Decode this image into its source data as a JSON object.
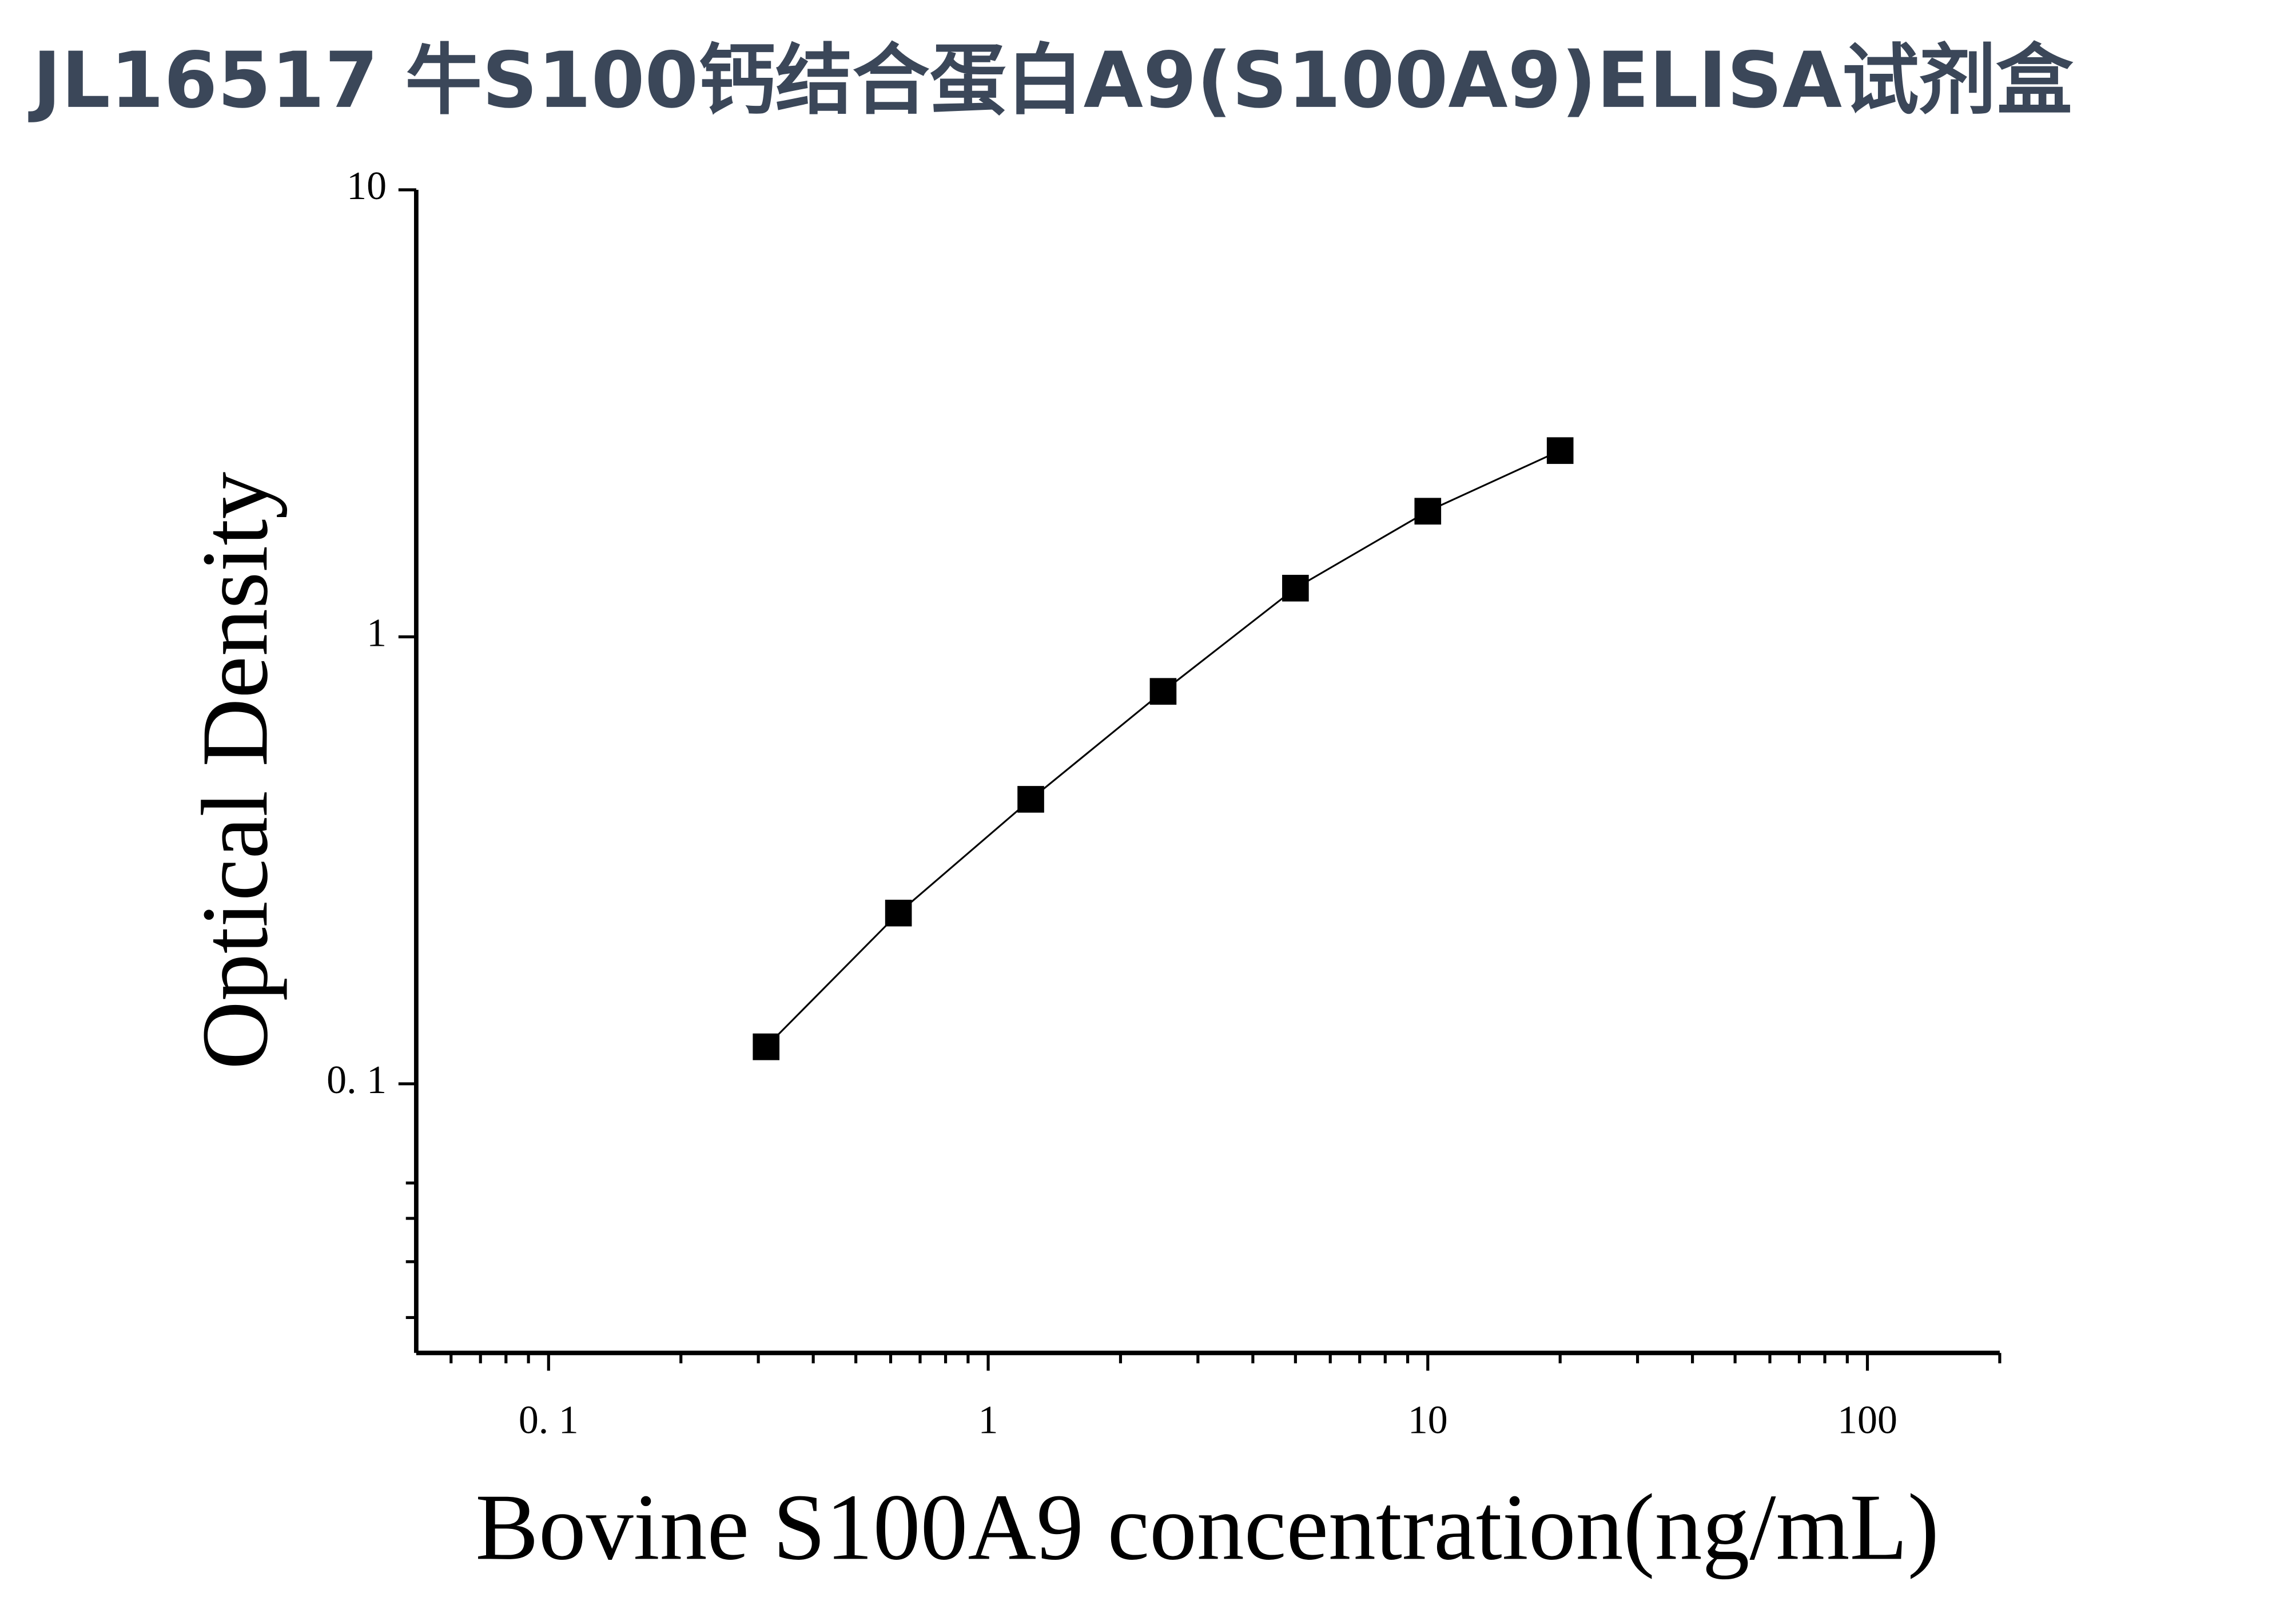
{
  "chart_data": {
    "type": "scatter",
    "title": "JL16517 牛S100钙结合蛋白A9(S100A9)ELISA试剂盒",
    "x_label": "Bovine S100A9 concentration(ng/mL)",
    "y_label": "Optical Density",
    "x_scale": "log",
    "y_scale": "log",
    "xlim": [
      0.05,
      200
    ],
    "ylim": [
      0.025,
      10
    ],
    "xticks": [
      {
        "value": 0.1,
        "label": "0. 1"
      },
      1,
      10,
      100
    ],
    "yticks": [
      {
        "value": 0.1,
        "label": "0. 1"
      },
      1,
      10
    ],
    "xticks_minor": [
      0.06,
      0.07,
      0.08,
      0.09,
      0.2,
      0.3,
      0.4,
      0.5,
      0.6,
      0.7,
      0.8,
      0.9,
      2,
      3,
      4,
      5,
      6,
      7,
      8,
      9,
      20,
      30,
      40,
      50,
      60,
      70,
      80,
      90,
      200
    ],
    "yticks_minor": [
      0.03,
      0.04,
      0.05,
      0.06
    ],
    "color": "#000000",
    "fit_line": true,
    "x": [
      0.3125,
      0.625,
      1.25,
      2.5,
      5,
      10,
      20
    ],
    "values": [
      0.121,
      0.241,
      0.433,
      0.755,
      1.285,
      1.91,
      2.61
    ]
  }
}
